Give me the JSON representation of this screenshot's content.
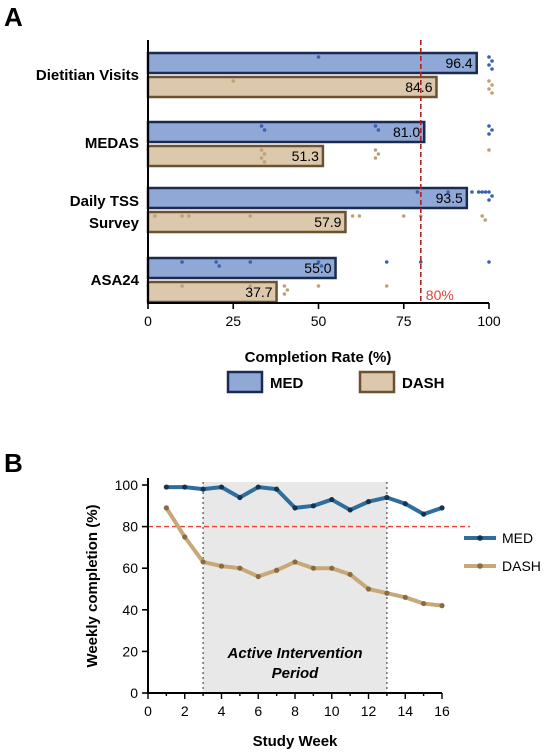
{
  "panels": {
    "a_letter": "A",
    "b_letter": "B"
  },
  "chart_data": [
    {
      "type": "bar",
      "orientation": "horizontal",
      "categories": [
        "Dietitian Visits",
        "MEDAS",
        "Daily TSS Survey",
        "ASA24"
      ],
      "category_labels": [
        [
          "Dietitian Visits"
        ],
        [
          "MEDAS"
        ],
        [
          "Daily  TSS",
          "Survey"
        ],
        [
          "ASA24"
        ]
      ],
      "series": [
        {
          "name": "MED",
          "values": [
            96.4,
            81.0,
            93.5,
            55.0
          ],
          "value_labels": [
            "96.4",
            "81.0",
            "93.5",
            "55.0"
          ],
          "fill": "#8fa8d6",
          "stroke": "#1a2a50",
          "point_color": "#3a62b0"
        },
        {
          "name": "DASH",
          "values": [
            84.6,
            51.3,
            57.9,
            37.7
          ],
          "value_labels": [
            "84.6",
            "51.3",
            "57.9",
            "37.7"
          ],
          "fill": "#dcc9ad",
          "stroke": "#6a5130",
          "point_color": "#bfa274"
        }
      ],
      "individual_points": {
        "MED": [
          [
            50,
            100,
            100,
            100,
            100
          ],
          [
            33.3,
            33.3,
            66.7,
            66.7,
            100,
            100,
            100
          ],
          [
            79,
            88,
            95,
            97,
            98,
            99,
            100,
            100,
            100
          ],
          [
            10,
            20,
            20,
            30,
            50,
            50,
            70,
            80,
            100
          ]
        ],
        "DASH": [
          [
            25,
            100,
            100,
            100,
            100
          ],
          [
            0,
            33.3,
            33.3,
            33.3,
            33.3,
            66.7,
            66.7,
            66.7,
            100
          ],
          [
            2,
            10,
            12,
            30,
            60,
            62,
            75,
            80,
            98,
            98
          ],
          [
            0,
            10,
            30,
            40,
            40,
            40,
            50,
            70
          ]
        ]
      },
      "reference_line": {
        "value": 80,
        "label": "80%",
        "color": "#b22222"
      },
      "xlim": [
        0,
        100
      ],
      "xticks": [
        0,
        25,
        50,
        75,
        100
      ],
      "xlabel": "Completion Rate (%)",
      "legend": {
        "placement": "bottom",
        "entries": [
          "MED",
          "DASH"
        ]
      }
    },
    {
      "type": "line",
      "x": [
        1,
        2,
        3,
        4,
        5,
        6,
        7,
        8,
        9,
        10,
        11,
        12,
        13,
        14,
        15,
        16
      ],
      "series": [
        {
          "name": "MED",
          "values": [
            99,
            99,
            98,
            99,
            94,
            99,
            98,
            89,
            90,
            93,
            88,
            92,
            94,
            91,
            86,
            89
          ],
          "color": "#2f6e9c",
          "marker_color": "#15334d"
        },
        {
          "name": "DASH",
          "values": [
            89,
            75,
            63,
            61,
            60,
            56,
            59,
            63,
            60,
            60,
            57,
            50,
            48,
            46,
            43,
            42
          ],
          "color": "#c8a878",
          "marker_color": "#8a6b3e"
        }
      ],
      "reference_line": {
        "value": 80,
        "color": "#e8403a"
      },
      "shaded_region": {
        "x_start": 3,
        "x_end": 13,
        "label_lines": [
          "Active Intervention",
          "Period"
        ],
        "color": "#e8e8e8"
      },
      "xlim": [
        0,
        16
      ],
      "ylim": [
        0,
        100
      ],
      "xticks": [
        0,
        2,
        4,
        6,
        8,
        10,
        12,
        14,
        16
      ],
      "yticks": [
        0,
        20,
        40,
        60,
        80,
        100
      ],
      "xlabel": "Study  Week",
      "ylabel": "Weekly completion (%)",
      "legend": {
        "placement": "right",
        "entries": [
          "MED",
          "DASH"
        ]
      }
    }
  ]
}
